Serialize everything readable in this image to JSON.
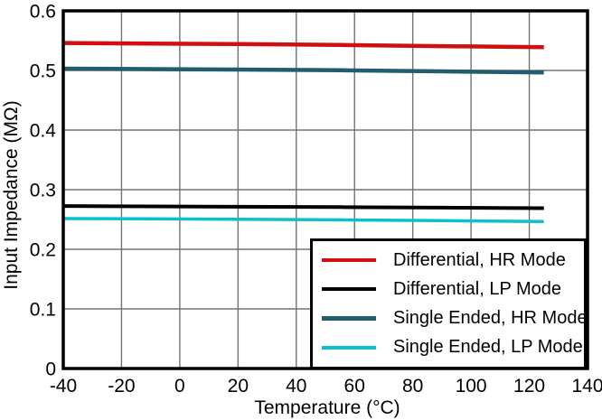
{
  "chart_data": {
    "type": "line",
    "title": "",
    "xlabel": "Temperature (°C)",
    "ylabel": "Input Impedance (MΩ)",
    "xlim": [
      -40,
      140
    ],
    "ylim": [
      0,
      0.6
    ],
    "xticks": [
      -40,
      -20,
      0,
      20,
      40,
      60,
      80,
      100,
      120,
      140
    ],
    "yticks": [
      0,
      0.1,
      0.2,
      0.3,
      0.4,
      0.5,
      0.6
    ],
    "xtick_labels": [
      "-40",
      "-20",
      "0",
      "20",
      "40",
      "60",
      "80",
      "100",
      "120",
      "140"
    ],
    "ytick_labels": [
      "0",
      "0.1",
      "0.2",
      "0.3",
      "0.4",
      "0.5",
      "0.6"
    ],
    "grid": true,
    "legend_position": "lower right",
    "series": [
      {
        "name": "Differential, HR Mode",
        "color": "#d01010",
        "line_width": 4.5,
        "points": [
          [
            -40,
            0.546
          ],
          [
            -10,
            0.5452
          ],
          [
            20,
            0.5443
          ],
          [
            55,
            0.5428
          ],
          [
            90,
            0.5408
          ],
          [
            125,
            0.539
          ]
        ]
      },
      {
        "name": "Differential, LP Mode",
        "color": "#000000",
        "line_width": 4,
        "points": [
          [
            -40,
            0.2725
          ],
          [
            -10,
            0.272
          ],
          [
            20,
            0.2714
          ],
          [
            55,
            0.2707
          ],
          [
            90,
            0.2699
          ],
          [
            125,
            0.269
          ]
        ]
      },
      {
        "name": "Single Ended, HR Mode",
        "color": "#215c6f",
        "line_width": 4.5,
        "points": [
          [
            -40,
            0.503
          ],
          [
            -10,
            0.5023
          ],
          [
            20,
            0.5015
          ],
          [
            55,
            0.5003
          ],
          [
            90,
            0.4985
          ],
          [
            125,
            0.4965
          ]
        ]
      },
      {
        "name": "Single Ended, LP Mode",
        "color": "#0cbfce",
        "line_width": 3.5,
        "points": [
          [
            -40,
            0.2515
          ],
          [
            -10,
            0.251
          ],
          [
            20,
            0.2503
          ],
          [
            55,
            0.2494
          ],
          [
            90,
            0.248
          ],
          [
            125,
            0.2465
          ]
        ]
      }
    ]
  }
}
